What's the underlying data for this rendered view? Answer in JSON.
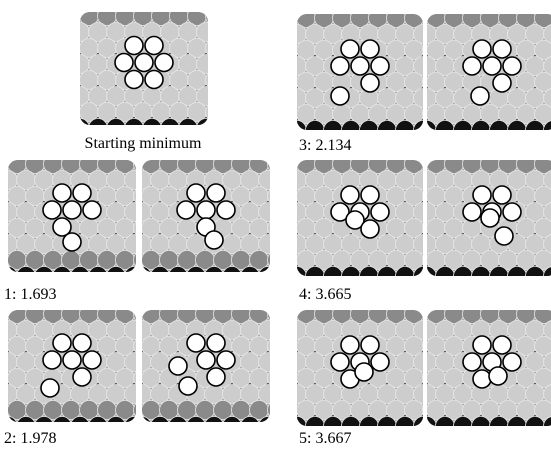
{
  "figure": {
    "captions": [
      "Starting minimum",
      "3: 2.134",
      "1: 1.693",
      "4: 3.665",
      "2: 1.978",
      "5: 3.667"
    ]
  }
}
